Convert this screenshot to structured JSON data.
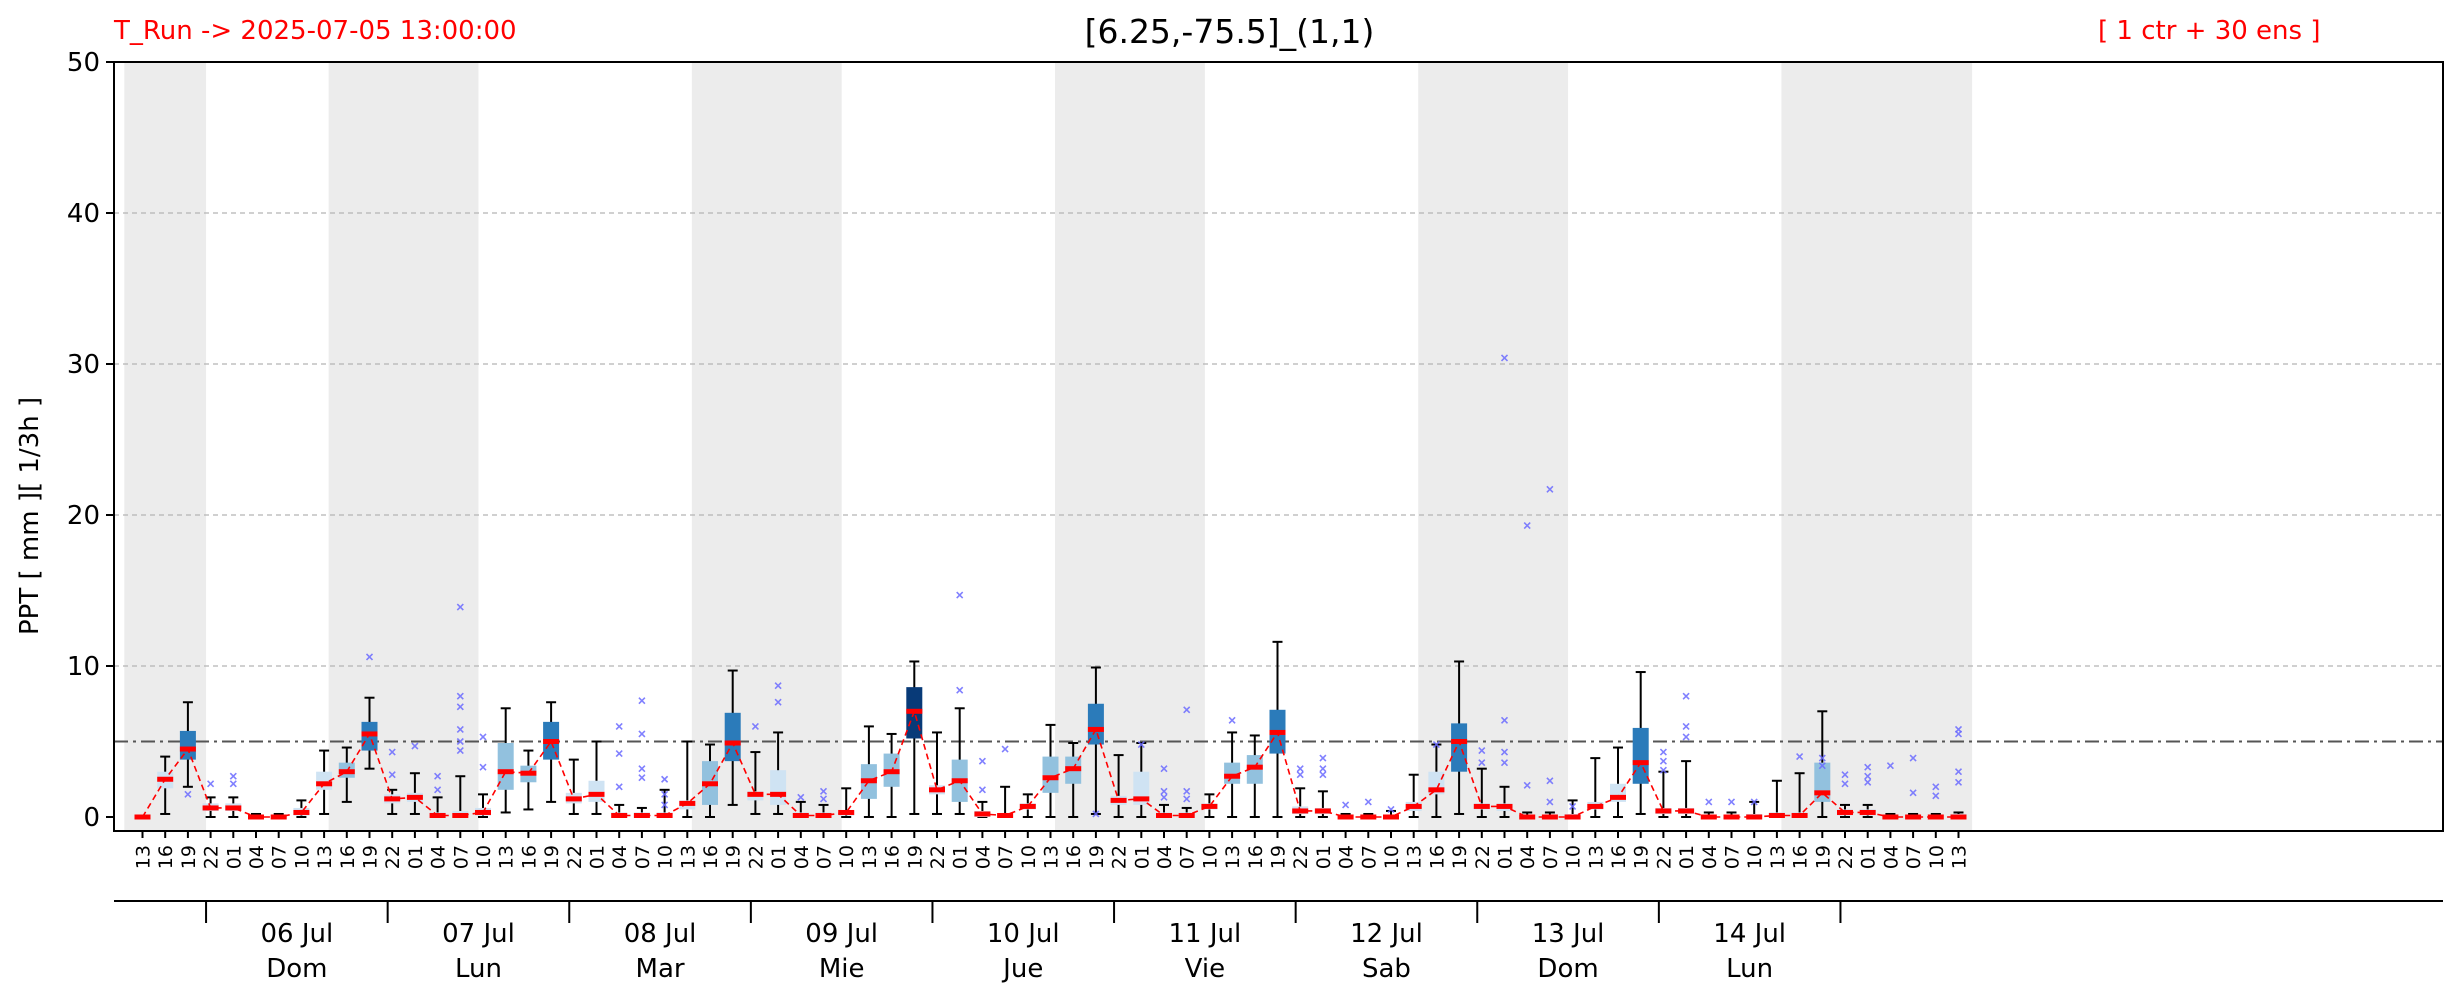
{
  "header": {
    "run_label": "T_Run -> 2025-07-05  13:00:00",
    "title": "[6.25,-75.5]_(1,1)",
    "ensemble_label": "[ 1 ctr + 30 ens ]"
  },
  "colors": {
    "median_line": "#ff0000",
    "outlier": "#6b6bff",
    "shade": "#ececec",
    "threshold": "#555555",
    "box_light": "#cfe3f3",
    "box_mid": "#92c1de",
    "box_dark": "#2b7bba",
    "box_darkest": "#083a78"
  },
  "chart_data": {
    "type": "box",
    "title": "[6.25,-75.5]_(1,1)",
    "ylabel": "PPT  [ mm ][ 1/3h ]",
    "ylim": [
      0,
      50
    ],
    "yticks": [
      0,
      10,
      20,
      30,
      40,
      50
    ],
    "threshold": 5,
    "grid": "horizontal dashed",
    "hours": [
      "13",
      "16",
      "19",
      "22",
      "01",
      "04",
      "07",
      "10",
      "13",
      "16",
      "19",
      "22",
      "01",
      "04",
      "07",
      "10",
      "13",
      "16",
      "19",
      "22",
      "01",
      "04",
      "07",
      "10",
      "13",
      "16",
      "19",
      "22",
      "01",
      "04",
      "07",
      "10",
      "13",
      "16",
      "19",
      "22",
      "01",
      "04",
      "07",
      "10",
      "13",
      "16",
      "19",
      "22",
      "01",
      "04",
      "07",
      "10",
      "13",
      "16",
      "19",
      "22",
      "01",
      "04",
      "07",
      "10",
      "13",
      "16",
      "19",
      "22",
      "01",
      "04",
      "07",
      "10",
      "13",
      "16",
      "19",
      "22",
      "01",
      "04",
      "07",
      "10",
      "13",
      "16",
      "19",
      "22",
      "01",
      "04",
      "07",
      "10",
      "13"
    ],
    "days": [
      {
        "date": "06 Jul",
        "weekday": "Dom"
      },
      {
        "date": "07 Jul",
        "weekday": "Lun"
      },
      {
        "date": "08 Jul",
        "weekday": "Mar"
      },
      {
        "date": "09 Jul",
        "weekday": "Mie"
      },
      {
        "date": "10 Jul",
        "weekday": "Jue"
      },
      {
        "date": "11 Jul",
        "weekday": "Vie"
      },
      {
        "date": "12 Jul",
        "weekday": "Sab"
      },
      {
        "date": "13 Jul",
        "weekday": "Dom"
      },
      {
        "date": "14 Jul",
        "weekday": "Lun"
      }
    ],
    "median": [
      0.0,
      2.5,
      4.5,
      0.6,
      0.6,
      0.0,
      0.0,
      0.3,
      2.2,
      3.0,
      5.5,
      1.2,
      1.3,
      0.1,
      0.1,
      0.3,
      3.0,
      2.9,
      5.0,
      1.2,
      1.5,
      0.1,
      0.1,
      0.1,
      0.9,
      2.2,
      4.9,
      1.5,
      1.5,
      0.1,
      0.1,
      0.3,
      2.4,
      3.0,
      7.0,
      1.8,
      2.4,
      0.2,
      0.1,
      0.7,
      2.6,
      3.2,
      5.8,
      1.1,
      1.2,
      0.1,
      0.1,
      0.7,
      2.7,
      3.3,
      5.6,
      0.4,
      0.4,
      0.0,
      0.0,
      0.0,
      0.7,
      1.8,
      5.0,
      0.7,
      0.7,
      0.0,
      0.0,
      0.0,
      0.7,
      1.3,
      3.6,
      0.4,
      0.4,
      0.0,
      0.0,
      0.0,
      0.1,
      0.1,
      1.6,
      0.3,
      0.3,
      0.0,
      0.0,
      0.0,
      0.0
    ],
    "q1": [
      0.0,
      1.9,
      3.8,
      0.4,
      0.4,
      0.0,
      0.0,
      0.1,
      1.8,
      2.6,
      4.4,
      0.9,
      1.0,
      0.0,
      0.0,
      0.1,
      1.8,
      2.3,
      3.8,
      0.9,
      1.0,
      0.0,
      0.0,
      0.0,
      0.5,
      0.8,
      3.7,
      1.1,
      0.8,
      0.0,
      0.0,
      0.1,
      1.2,
      2.0,
      5.2,
      1.5,
      1.0,
      0.0,
      0.0,
      0.5,
      1.6,
      2.2,
      4.8,
      0.8,
      0.8,
      0.0,
      0.0,
      0.5,
      2.2,
      2.2,
      4.2,
      0.2,
      0.2,
      0.0,
      0.0,
      0.0,
      0.4,
      1.5,
      3.0,
      0.5,
      0.4,
      0.0,
      0.0,
      0.0,
      0.5,
      1.0,
      2.2,
      0.2,
      0.2,
      0.0,
      0.0,
      0.0,
      0.0,
      0.0,
      1.0,
      0.1,
      0.1,
      0.0,
      0.0,
      0.0,
      0.0
    ],
    "q3": [
      0.1,
      3.0,
      5.7,
      0.9,
      0.9,
      0.1,
      0.1,
      0.6,
      3.0,
      3.6,
      6.3,
      1.5,
      1.6,
      0.3,
      0.4,
      0.6,
      4.9,
      3.4,
      6.3,
      1.6,
      2.4,
      0.3,
      0.3,
      0.3,
      1.1,
      3.7,
      6.9,
      1.7,
      3.1,
      0.3,
      0.3,
      0.4,
      3.5,
      4.2,
      8.6,
      2.1,
      3.8,
      0.4,
      0.2,
      0.9,
      4.0,
      4.0,
      7.5,
      1.4,
      3.0,
      0.3,
      0.3,
      0.9,
      3.6,
      4.1,
      7.1,
      0.7,
      0.6,
      0.1,
      0.1,
      0.1,
      1.0,
      3.0,
      6.2,
      0.9,
      0.9,
      0.1,
      0.1,
      0.2,
      1.0,
      2.2,
      5.9,
      0.6,
      0.6,
      0.1,
      0.1,
      0.2,
      0.3,
      0.3,
      3.6,
      0.5,
      0.5,
      0.1,
      0.1,
      0.1,
      0.2
    ],
    "whisker_low": [
      0.0,
      0.2,
      2.0,
      0.0,
      0.0,
      0.0,
      0.0,
      0.0,
      0.2,
      1.0,
      3.2,
      0.2,
      0.2,
      0.0,
      0.0,
      0.0,
      0.3,
      0.5,
      1.0,
      0.2,
      0.2,
      0.0,
      0.0,
      0.0,
      0.0,
      0.0,
      0.8,
      0.2,
      0.2,
      0.0,
      0.0,
      0.0,
      0.0,
      0.0,
      0.2,
      0.2,
      0.2,
      0.0,
      0.0,
      0.0,
      0.0,
      0.0,
      0.2,
      0.0,
      0.0,
      0.0,
      0.0,
      0.0,
      0.0,
      0.0,
      0.0,
      0.0,
      0.0,
      0.0,
      0.0,
      0.0,
      0.0,
      0.0,
      0.2,
      0.0,
      0.0,
      0.0,
      0.0,
      0.0,
      0.0,
      0.0,
      0.2,
      0.0,
      0.0,
      0.0,
      0.0,
      0.0,
      0.0,
      0.0,
      0.0,
      0.0,
      0.0,
      0.0,
      0.0,
      0.0,
      0.0
    ],
    "whisker_high": [
      0.1,
      4.0,
      7.6,
      1.3,
      1.3,
      0.2,
      0.2,
      1.1,
      4.4,
      4.6,
      7.9,
      1.8,
      2.9,
      1.3,
      2.7,
      1.5,
      7.2,
      4.4,
      7.6,
      3.8,
      5.0,
      0.8,
      0.6,
      1.8,
      5.0,
      4.8,
      9.7,
      4.3,
      5.6,
      1.0,
      0.8,
      1.9,
      6.0,
      5.5,
      10.3,
      5.6,
      7.2,
      1.0,
      2.0,
      1.5,
      6.1,
      4.9,
      9.9,
      4.1,
      4.9,
      0.8,
      0.6,
      1.5,
      5.6,
      5.4,
      11.6,
      1.9,
      1.7,
      0.2,
      0.2,
      0.4,
      2.8,
      4.8,
      10.3,
      3.2,
      2.0,
      0.3,
      0.3,
      1.1,
      3.9,
      4.6,
      9.6,
      3.0,
      3.7,
      0.3,
      0.3,
      1.0,
      2.4,
      2.9,
      7.0,
      0.8,
      0.8,
      0.2,
      0.2,
      0.2,
      0.3
    ],
    "outliers": [
      {
        "i": 2,
        "v": 1.5
      },
      {
        "i": 3,
        "v": 2.2
      },
      {
        "i": 4,
        "v": 2.7
      },
      {
        "i": 4,
        "v": 2.2
      },
      {
        "i": 10,
        "v": 10.6
      },
      {
        "i": 11,
        "v": 4.3
      },
      {
        "i": 11,
        "v": 2.8
      },
      {
        "i": 12,
        "v": 4.7
      },
      {
        "i": 13,
        "v": 2.7
      },
      {
        "i": 13,
        "v": 1.8
      },
      {
        "i": 14,
        "v": 13.9
      },
      {
        "i": 14,
        "v": 8.0
      },
      {
        "i": 14,
        "v": 7.3
      },
      {
        "i": 14,
        "v": 5.8
      },
      {
        "i": 14,
        "v": 5.0
      },
      {
        "i": 14,
        "v": 4.4
      },
      {
        "i": 15,
        "v": 5.3
      },
      {
        "i": 15,
        "v": 3.3
      },
      {
        "i": 21,
        "v": 6.0
      },
      {
        "i": 21,
        "v": 4.2
      },
      {
        "i": 21,
        "v": 2.0
      },
      {
        "i": 22,
        "v": 7.7
      },
      {
        "i": 22,
        "v": 5.5
      },
      {
        "i": 22,
        "v": 3.2
      },
      {
        "i": 22,
        "v": 2.6
      },
      {
        "i": 23,
        "v": 2.5
      },
      {
        "i": 23,
        "v": 1.5
      },
      {
        "i": 23,
        "v": 0.8
      },
      {
        "i": 27,
        "v": 6.0
      },
      {
        "i": 28,
        "v": 8.7
      },
      {
        "i": 28,
        "v": 7.6
      },
      {
        "i": 29,
        "v": 1.3
      },
      {
        "i": 30,
        "v": 1.7
      },
      {
        "i": 30,
        "v": 1.2
      },
      {
        "i": 36,
        "v": 14.7
      },
      {
        "i": 36,
        "v": 8.4
      },
      {
        "i": 37,
        "v": 3.7
      },
      {
        "i": 37,
        "v": 1.8
      },
      {
        "i": 38,
        "v": 4.5
      },
      {
        "i": 42,
        "v": 0.2
      },
      {
        "i": 44,
        "v": 4.8
      },
      {
        "i": 45,
        "v": 3.2
      },
      {
        "i": 45,
        "v": 1.7
      },
      {
        "i": 45,
        "v": 1.3
      },
      {
        "i": 46,
        "v": 7.1
      },
      {
        "i": 46,
        "v": 1.7
      },
      {
        "i": 46,
        "v": 1.2
      },
      {
        "i": 48,
        "v": 6.4
      },
      {
        "i": 51,
        "v": 3.2
      },
      {
        "i": 51,
        "v": 2.8
      },
      {
        "i": 52,
        "v": 3.9
      },
      {
        "i": 52,
        "v": 3.2
      },
      {
        "i": 52,
        "v": 2.8
      },
      {
        "i": 53,
        "v": 0.8
      },
      {
        "i": 54,
        "v": 1.0
      },
      {
        "i": 55,
        "v": 0.5
      },
      {
        "i": 57,
        "v": 4.8
      },
      {
        "i": 59,
        "v": 4.4
      },
      {
        "i": 59,
        "v": 3.6
      },
      {
        "i": 60,
        "v": 30.4
      },
      {
        "i": 60,
        "v": 6.4
      },
      {
        "i": 60,
        "v": 4.3
      },
      {
        "i": 60,
        "v": 3.6
      },
      {
        "i": 61,
        "v": 19.3
      },
      {
        "i": 61,
        "v": 2.1
      },
      {
        "i": 62,
        "v": 21.7
      },
      {
        "i": 62,
        "v": 2.4
      },
      {
        "i": 62,
        "v": 1.0
      },
      {
        "i": 63,
        "v": 0.7
      },
      {
        "i": 67,
        "v": 4.3
      },
      {
        "i": 67,
        "v": 3.7
      },
      {
        "i": 67,
        "v": 3.1
      },
      {
        "i": 68,
        "v": 8.0
      },
      {
        "i": 68,
        "v": 6.0
      },
      {
        "i": 68,
        "v": 5.3
      },
      {
        "i": 69,
        "v": 1.0
      },
      {
        "i": 70,
        "v": 1.0
      },
      {
        "i": 71,
        "v": 1.0
      },
      {
        "i": 73,
        "v": 4.0
      },
      {
        "i": 74,
        "v": 3.9
      },
      {
        "i": 74,
        "v": 3.4
      },
      {
        "i": 75,
        "v": 2.8
      },
      {
        "i": 75,
        "v": 2.2
      },
      {
        "i": 76,
        "v": 3.3
      },
      {
        "i": 76,
        "v": 2.7
      },
      {
        "i": 76,
        "v": 2.3
      },
      {
        "i": 77,
        "v": 3.4
      },
      {
        "i": 78,
        "v": 3.9
      },
      {
        "i": 78,
        "v": 1.6
      },
      {
        "i": 79,
        "v": 2.0
      },
      {
        "i": 79,
        "v": 1.4
      },
      {
        "i": 80,
        "v": 5.8
      },
      {
        "i": 80,
        "v": 5.5
      },
      {
        "i": 80,
        "v": 3.0
      },
      {
        "i": 80,
        "v": 2.3
      }
    ]
  }
}
